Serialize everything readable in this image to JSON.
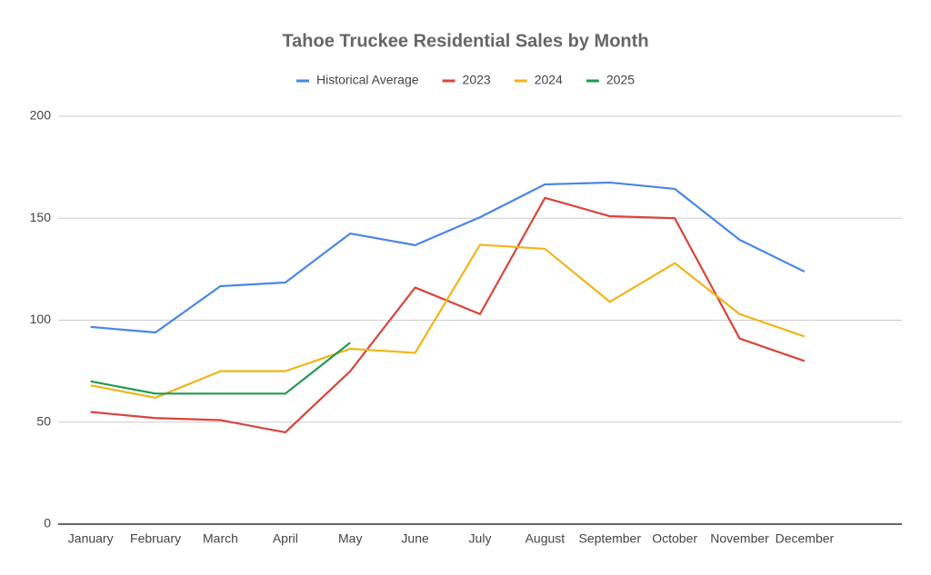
{
  "chart_data": {
    "type": "line",
    "title": "Tahoe Truckee Residential Sales by Month",
    "categories": [
      "January",
      "February",
      "March",
      "April",
      "May",
      "June",
      "July",
      "August",
      "September",
      "October",
      "November",
      "December",
      null
    ],
    "series": [
      {
        "name": "Historical Average",
        "color": "#4a86e8",
        "values": [
          96.7,
          94,
          116.7,
          118.5,
          142.5,
          136.8,
          150.5,
          166.6,
          167.5,
          164.4,
          139.4,
          123.8,
          null
        ]
      },
      {
        "name": "2023",
        "color": "#d9443a",
        "values": [
          55,
          52,
          51,
          45,
          75,
          116,
          103,
          160,
          151,
          150,
          91,
          80,
          null
        ]
      },
      {
        "name": "2024",
        "color": "#f2b418",
        "values": [
          68,
          62,
          75,
          75,
          86,
          84,
          137,
          135,
          109,
          128,
          103,
          92,
          null
        ]
      },
      {
        "name": "2025",
        "color": "#1e9952",
        "values": [
          70,
          64,
          64,
          64,
          89,
          null,
          null,
          null,
          null,
          null,
          null,
          null,
          null
        ]
      }
    ],
    "ylim": [
      0,
      200
    ],
    "yticks": [
      0,
      50,
      100,
      150,
      200
    ],
    "grid": true,
    "legend": "top"
  }
}
